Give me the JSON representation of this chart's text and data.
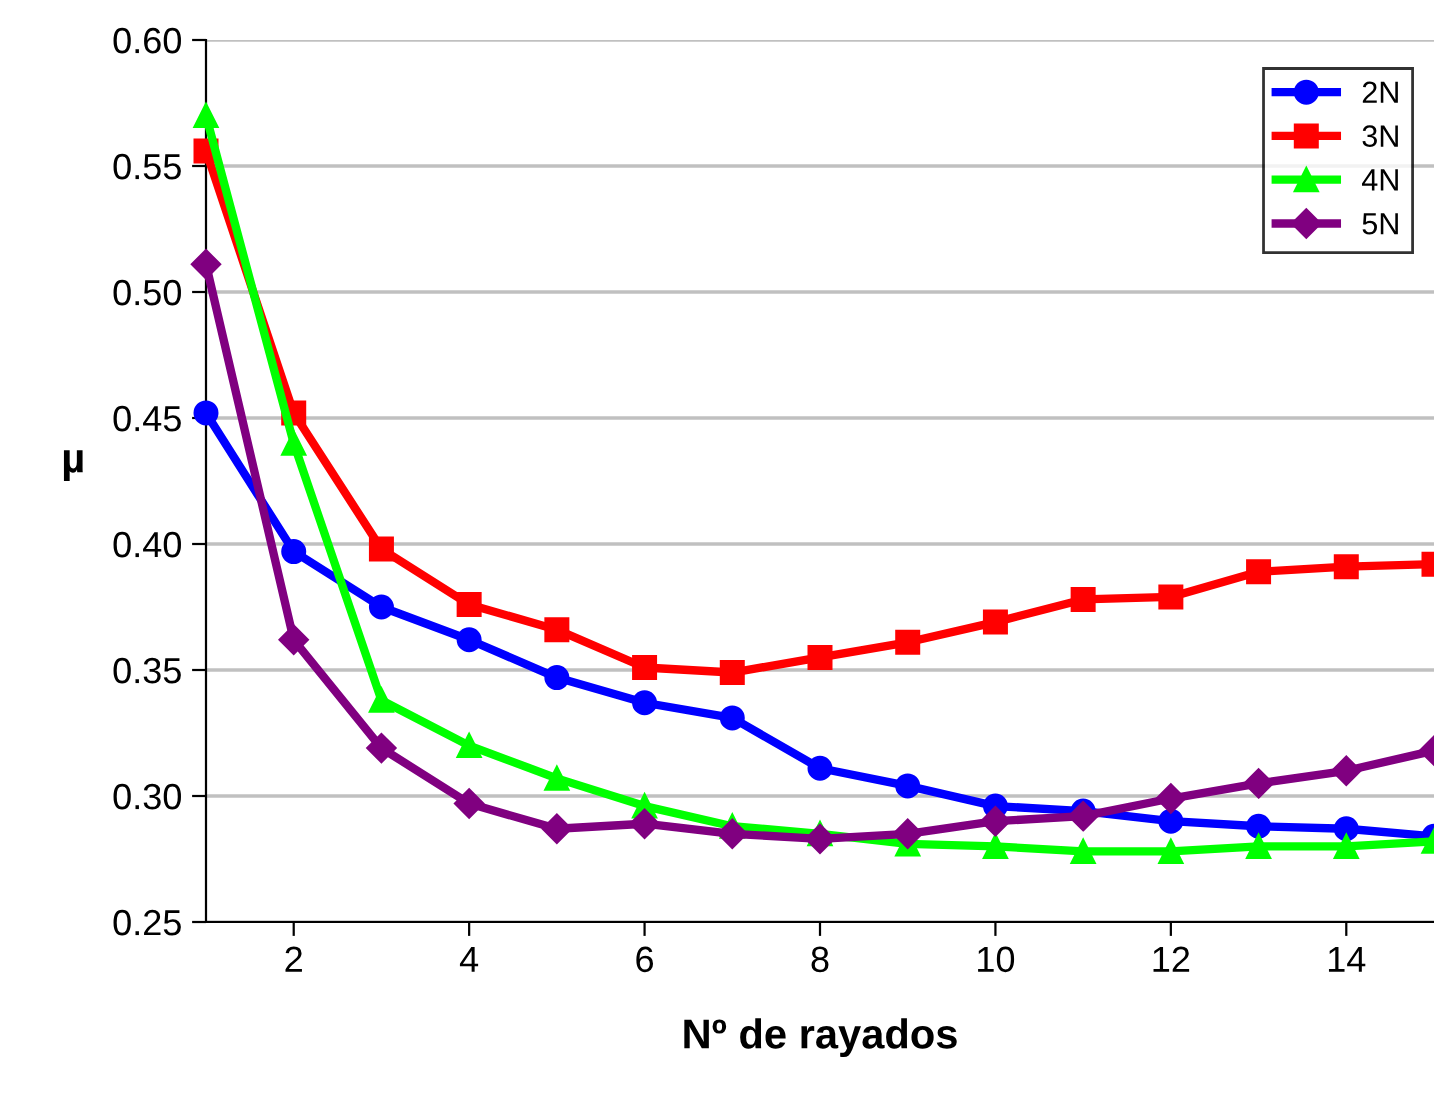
{
  "chart_data": {
    "type": "line",
    "xlabel": "Nº de rayados",
    "ylabel": "µ",
    "x": [
      1,
      2,
      3,
      4,
      5,
      6,
      7,
      8,
      9,
      10,
      11,
      12,
      13,
      14,
      15
    ],
    "series": [
      {
        "name": "2N",
        "color": "#0000ff",
        "marker": "circle",
        "values": [
          0.452,
          0.397,
          0.375,
          0.362,
          0.347,
          0.337,
          0.331,
          0.311,
          0.304,
          0.296,
          0.294,
          0.29,
          0.288,
          0.287,
          0.284
        ]
      },
      {
        "name": "3N",
        "color": "#ff0000",
        "marker": "square",
        "values": [
          0.556,
          0.452,
          0.398,
          0.376,
          0.366,
          0.351,
          0.349,
          0.355,
          0.361,
          0.369,
          0.378,
          0.379,
          0.389,
          0.391,
          0.392
        ]
      },
      {
        "name": "4N",
        "color": "#00ff00",
        "marker": "triangle",
        "values": [
          0.57,
          0.44,
          0.338,
          0.32,
          0.307,
          0.296,
          0.288,
          0.285,
          0.281,
          0.28,
          0.278,
          0.278,
          0.28,
          0.28,
          0.282
        ]
      },
      {
        "name": "5N",
        "color": "#800080",
        "marker": "diamond",
        "values": [
          0.511,
          0.362,
          0.319,
          0.297,
          0.287,
          0.289,
          0.285,
          0.283,
          0.285,
          0.29,
          0.292,
          0.299,
          0.305,
          0.31,
          0.318
        ]
      }
    ],
    "xlim": [
      1,
      15
    ],
    "xticks": [
      2,
      4,
      6,
      8,
      10,
      12,
      14
    ],
    "ylim": [
      0.25,
      0.6
    ],
    "yticks": [
      {
        "value": 0.25,
        "label": "0.25"
      },
      {
        "value": 0.3,
        "label": "0.30"
      },
      {
        "value": 0.35,
        "label": "0.35"
      },
      {
        "value": 0.4,
        "label": "0.40"
      },
      {
        "value": 0.45,
        "label": "0.45"
      },
      {
        "value": 0.5,
        "label": "0.50"
      },
      {
        "value": 0.55,
        "label": "0.55"
      },
      {
        "value": 0.6,
        "label": "0.60"
      }
    ],
    "grid": "y",
    "legend": "top right",
    "line_style": "solid"
  }
}
